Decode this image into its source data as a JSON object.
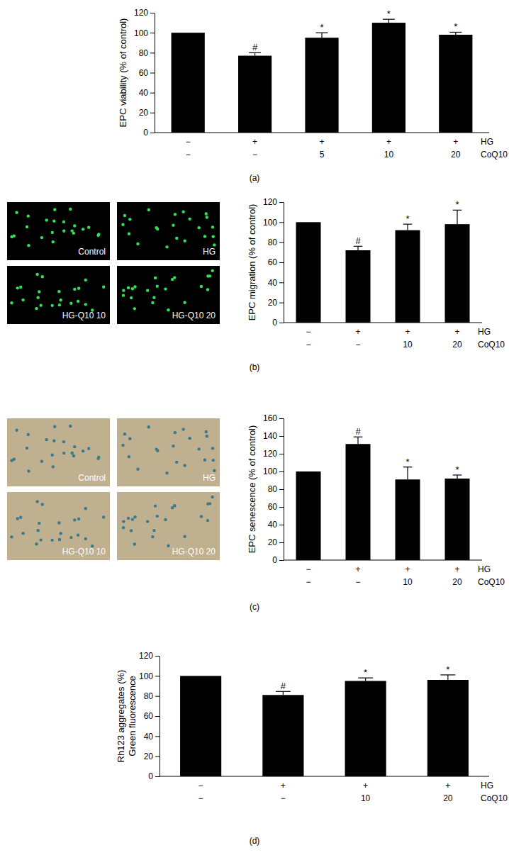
{
  "chart_data": [
    {
      "type": "bar",
      "panel": "(a)",
      "y_label": [
        "EPC viability (% of control)"
      ],
      "color": "#000000",
      "x_rows": [
        {
          "name": "HG",
          "labels": [
            "−",
            "+",
            "+",
            "+",
            "+"
          ]
        },
        {
          "name": "CoQ10",
          "labels": [
            "−",
            "−",
            "5",
            "10",
            "20"
          ]
        }
      ],
      "values": [
        100,
        77,
        95,
        110,
        98
      ],
      "errors": [
        null,
        3,
        5,
        3.5,
        2.5
      ],
      "annotations": [
        null,
        "#",
        "*",
        "*",
        "*"
      ],
      "ylim": [
        0,
        120
      ],
      "yticks": [
        0,
        20,
        40,
        60,
        80,
        100,
        120
      ]
    },
    {
      "type": "bar",
      "panel": "(b)",
      "y_label": [
        "EPC migration (% of control)"
      ],
      "color": "#000000",
      "images": [
        "Control",
        "HG",
        "HG-Q10 10",
        "HG-Q10 20"
      ],
      "x_rows": [
        {
          "name": "HG",
          "labels": [
            "−",
            "+",
            "+",
            "+"
          ]
        },
        {
          "name": "CoQ10",
          "labels": [
            "−",
            "−",
            "10",
            "20"
          ]
        }
      ],
      "values": [
        100,
        72,
        92,
        98
      ],
      "errors": [
        null,
        4,
        6,
        14
      ],
      "annotations": [
        null,
        "#",
        "*",
        "*"
      ],
      "ylim": [
        0,
        120
      ],
      "yticks": [
        0,
        20,
        40,
        60,
        80,
        100,
        120
      ]
    },
    {
      "type": "bar",
      "panel": "(c)",
      "y_label": [
        "EPC senescence (% of control)"
      ],
      "color": "#000000",
      "images": [
        "Control",
        "HG",
        "HG-Q10 10",
        "HG-Q10 20"
      ],
      "x_rows": [
        {
          "name": "HG",
          "labels": [
            "−",
            "+",
            "+",
            "+"
          ]
        },
        {
          "name": "CoQ10",
          "labels": [
            "−",
            "−",
            "10",
            "20"
          ]
        }
      ],
      "values": [
        100,
        131,
        91,
        92
      ],
      "errors": [
        null,
        8,
        14,
        4
      ],
      "annotations": [
        null,
        "#",
        "*",
        "*"
      ],
      "ylim": [
        0,
        160
      ],
      "yticks": [
        0,
        20,
        40,
        60,
        80,
        100,
        120,
        140,
        160
      ]
    },
    {
      "type": "bar",
      "panel": "(d)",
      "y_label": [
        "Rh123 aggregates (%)",
        "Green fluorescence"
      ],
      "color": "#000000",
      "x_rows": [
        {
          "name": "HG",
          "labels": [
            "−",
            "+",
            "+",
            "+"
          ]
        },
        {
          "name": "CoQ10",
          "labels": [
            "−",
            "−",
            "10",
            "20"
          ]
        }
      ],
      "values": [
        100,
        81,
        95,
        96
      ],
      "errors": [
        null,
        3.5,
        3,
        5
      ],
      "annotations": [
        null,
        "#",
        "*",
        "*"
      ],
      "ylim": [
        0,
        120
      ],
      "yticks": [
        0,
        20,
        40,
        60,
        80,
        100,
        120
      ]
    }
  ]
}
